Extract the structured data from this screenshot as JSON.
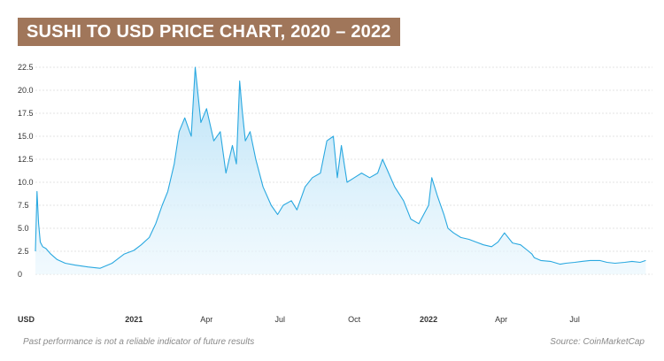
{
  "chart_data": {
    "type": "area",
    "title": "SUSHI TO USD PRICE CHART, 2020 – 2022",
    "ylabel": "USD",
    "xlabel": "",
    "ylim": [
      0,
      22.5
    ],
    "xlim": [
      "2020-09-01",
      "2022-10-01"
    ],
    "y_ticks": [
      "0",
      "2.5",
      "5.0",
      "7.5",
      "10.0",
      "12.5",
      "15.0",
      "17.5",
      "20.0",
      "22.5"
    ],
    "x_ticks": [
      {
        "label": "2021",
        "date": "2021-01-01",
        "bold": true
      },
      {
        "label": "Apr",
        "date": "2021-04-01",
        "bold": false
      },
      {
        "label": "Jul",
        "date": "2021-07-01",
        "bold": false
      },
      {
        "label": "Oct",
        "date": "2021-10-01",
        "bold": false
      },
      {
        "label": "2022",
        "date": "2022-01-01",
        "bold": true
      },
      {
        "label": "Apr",
        "date": "2022-04-01",
        "bold": false
      },
      {
        "label": "Jul",
        "date": "2022-07-01",
        "bold": false
      }
    ],
    "grid": true,
    "line_color": "#29a8e0",
    "fill_color": "#c9e8f8",
    "series": [
      {
        "x": [
          "2020-09-01",
          "2020-09-03",
          "2020-09-05",
          "2020-09-07",
          "2020-09-10",
          "2020-09-14",
          "2020-09-20",
          "2020-09-28",
          "2020-10-08",
          "2020-10-20",
          "2020-11-05",
          "2020-11-20",
          "2020-12-05",
          "2020-12-20",
          "2021-01-01",
          "2021-01-10",
          "2021-01-20",
          "2021-01-28",
          "2021-02-05",
          "2021-02-12",
          "2021-02-20",
          "2021-02-26",
          "2021-03-05",
          "2021-03-13",
          "2021-03-18",
          "2021-03-25",
          "2021-04-01",
          "2021-04-10",
          "2021-04-18",
          "2021-04-25",
          "2021-05-03",
          "2021-05-08",
          "2021-05-12",
          "2021-05-15",
          "2021-05-19",
          "2021-05-25",
          "2021-06-01",
          "2021-06-10",
          "2021-06-20",
          "2021-06-28",
          "2021-07-05",
          "2021-07-15",
          "2021-07-22",
          "2021-08-01",
          "2021-08-10",
          "2021-08-20",
          "2021-08-28",
          "2021-09-05",
          "2021-09-10",
          "2021-09-15",
          "2021-09-22",
          "2021-10-01",
          "2021-10-10",
          "2021-10-20",
          "2021-10-30",
          "2021-11-05",
          "2021-11-10",
          "2021-11-20",
          "2021-12-01",
          "2021-12-10",
          "2021-12-20",
          "2022-01-01",
          "2022-01-05",
          "2022-01-12",
          "2022-01-20",
          "2022-01-25",
          "2022-02-01",
          "2022-02-10",
          "2022-02-20",
          "2022-03-01",
          "2022-03-10",
          "2022-03-20",
          "2022-03-28",
          "2022-04-05",
          "2022-04-15",
          "2022-04-25",
          "2022-05-05",
          "2022-05-09",
          "2022-05-12",
          "2022-05-20",
          "2022-06-01",
          "2022-06-13",
          "2022-06-20",
          "2022-07-01",
          "2022-07-10",
          "2022-07-20",
          "2022-08-01",
          "2022-08-10",
          "2022-08-20",
          "2022-09-01",
          "2022-09-10",
          "2022-09-20",
          "2022-09-27"
        ],
        "values": [
          2.5,
          9.0,
          5.5,
          3.5,
          3.0,
          2.8,
          2.2,
          1.6,
          1.2,
          1.0,
          0.8,
          0.65,
          1.2,
          2.2,
          2.6,
          3.2,
          4.0,
          5.5,
          7.5,
          9.0,
          12.0,
          15.5,
          17.0,
          15.0,
          22.5,
          16.5,
          18.0,
          14.5,
          15.5,
          11.0,
          14.0,
          12.0,
          21.0,
          18.0,
          14.5,
          15.5,
          12.5,
          9.5,
          7.5,
          6.5,
          7.5,
          8.0,
          7.0,
          9.5,
          10.5,
          11.0,
          14.5,
          15.0,
          10.5,
          14.0,
          10.0,
          10.5,
          11.0,
          10.5,
          11.0,
          12.5,
          11.5,
          9.5,
          8.0,
          6.0,
          5.5,
          7.5,
          10.5,
          8.5,
          6.5,
          5.0,
          4.5,
          4.0,
          3.8,
          3.5,
          3.2,
          3.0,
          3.5,
          4.5,
          3.4,
          3.2,
          2.5,
          2.2,
          1.8,
          1.5,
          1.4,
          1.1,
          1.2,
          1.3,
          1.4,
          1.5,
          1.5,
          1.3,
          1.2,
          1.3,
          1.4,
          1.3,
          1.5
        ]
      }
    ]
  },
  "footer": {
    "disclaimer": "Past performance is not a reliable indicator of future results",
    "source": "Source: CoinMarketCap"
  }
}
